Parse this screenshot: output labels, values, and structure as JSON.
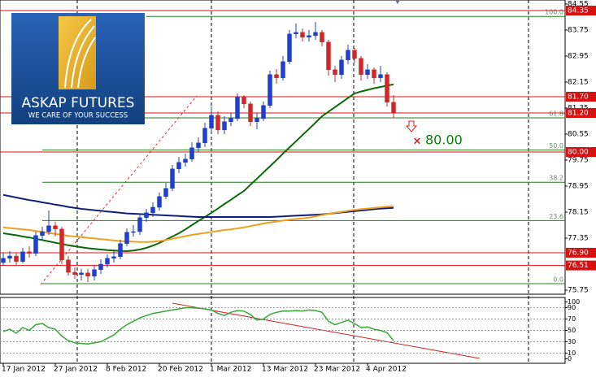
{
  "logo": {
    "title": "ASKAP FUTURES",
    "slogan": "WE CARE OF YOUR SUCCESS"
  },
  "chart_data": {
    "type": "candlestick",
    "categories": [
      "17 Jan 2012",
      null,
      null,
      null,
      null,
      null,
      null,
      null,
      "27 Jan 2012",
      null,
      null,
      null,
      null,
      null,
      null,
      null,
      "8 Feb 2012",
      null,
      null,
      null,
      null,
      null,
      null,
      null,
      "20 Feb 2012",
      null,
      null,
      null,
      null,
      null,
      null,
      null,
      "1 Mar 2012",
      null,
      null,
      null,
      null,
      null,
      null,
      null,
      "13 Mar 2012",
      null,
      null,
      null,
      null,
      null,
      null,
      null,
      "23 Mar 2012",
      null,
      null,
      null,
      null,
      null,
      null,
      null,
      "4 Apr 2012",
      null,
      null,
      null,
      null
    ],
    "open": [
      76.6,
      76.73,
      76.8,
      76.63,
      76.93,
      76.88,
      77.43,
      77.55,
      77.73,
      77.63,
      76.68,
      76.3,
      76.23,
      76.28,
      76.18,
      76.38,
      76.55,
      76.73,
      76.78,
      77.18,
      77.53,
      77.55,
      77.98,
      78.13,
      78.3,
      78.63,
      78.88,
      79.48,
      79.68,
      79.78,
      80.13,
      80.28,
      80.73,
      81.13,
      80.68,
      80.93,
      81.03,
      81.68,
      81.48,
      80.93,
      81.03,
      81.43,
      82.38,
      82.28,
      82.78,
      83.63,
      83.68,
      83.53,
      83.58,
      83.68,
      83.38,
      82.53,
      82.38,
      82.83,
      83.13,
      82.88,
      82.38,
      82.53,
      82.28,
      82.38,
      81.53
    ],
    "high": [
      76.9,
      76.95,
      76.88,
      77.05,
      77.1,
      77.55,
      77.7,
      78.2,
      77.85,
      77.7,
      76.8,
      76.45,
      76.4,
      76.4,
      76.5,
      76.7,
      76.85,
      76.95,
      77.3,
      77.65,
      77.75,
      78.1,
      78.25,
      78.45,
      78.75,
      79.05,
      79.6,
      79.85,
      79.95,
      80.3,
      80.45,
      80.9,
      81.4,
      81.25,
      81.1,
      81.2,
      81.8,
      81.75,
      81.55,
      81.2,
      81.55,
      82.5,
      82.55,
      82.95,
      83.75,
      83.95,
      83.8,
      83.75,
      84.0,
      83.75,
      83.45,
      82.65,
      82.95,
      83.3,
      83.2,
      82.95,
      82.7,
      82.6,
      82.65,
      82.45,
      81.75
    ],
    "low": [
      76.5,
      76.6,
      76.5,
      76.58,
      76.75,
      76.8,
      77.3,
      77.45,
      77.4,
      76.55,
      76.2,
      76.1,
      76.05,
      76.0,
      76.05,
      76.25,
      76.45,
      76.6,
      76.7,
      77.1,
      77.4,
      77.45,
      77.85,
      78.0,
      78.2,
      78.55,
      78.8,
      79.35,
      79.55,
      79.7,
      80.0,
      80.15,
      80.6,
      80.55,
      80.55,
      80.8,
      80.95,
      81.35,
      80.8,
      80.7,
      80.95,
      81.35,
      82.1,
      82.2,
      82.7,
      83.5,
      83.4,
      83.4,
      83.45,
      83.25,
      82.35,
      82.15,
      82.25,
      82.7,
      82.75,
      82.2,
      82.25,
      82.1,
      82.15,
      81.4,
      81.05
    ],
    "close": [
      76.73,
      76.8,
      76.63,
      76.93,
      76.88,
      77.43,
      77.55,
      77.73,
      77.63,
      76.68,
      76.3,
      76.23,
      76.28,
      76.18,
      76.38,
      76.55,
      76.73,
      76.78,
      77.18,
      77.53,
      77.55,
      77.98,
      78.13,
      78.3,
      78.63,
      78.88,
      79.48,
      79.68,
      79.78,
      80.13,
      80.28,
      80.73,
      81.13,
      80.68,
      80.93,
      81.03,
      81.68,
      81.48,
      80.93,
      81.03,
      81.43,
      82.38,
      82.28,
      82.78,
      83.63,
      83.68,
      83.53,
      83.58,
      83.68,
      83.38,
      82.53,
      82.38,
      82.83,
      83.13,
      82.88,
      82.38,
      82.53,
      82.28,
      82.38,
      81.53,
      81.2
    ],
    "up_color": "#1f3fd0",
    "down_color": "#d02828",
    "ylim": [
      75.625,
      84.675
    ],
    "yticks": [
      84.55,
      83.75,
      82.95,
      82.15,
      81.35,
      80.55,
      79.75,
      78.95,
      78.15,
      77.35,
      75.75
    ],
    "series": [
      {
        "color": "#0a6a0a",
        "values": [
          77.5,
          77.47,
          77.44,
          77.4,
          77.37,
          77.33,
          77.29,
          77.25,
          77.21,
          77.17,
          77.13,
          77.1,
          77.07,
          77.04,
          77.02,
          77.0,
          76.98,
          76.97,
          76.96,
          76.95,
          76.97,
          77.0,
          77.05,
          77.12,
          77.2,
          77.3,
          77.4,
          77.5,
          77.62,
          77.75,
          77.88,
          78.0,
          78.13,
          78.26,
          78.4,
          78.53,
          78.67,
          78.8,
          78.99,
          79.18,
          79.37,
          79.56,
          79.75,
          79.95,
          80.14,
          80.33,
          80.52,
          80.71,
          80.9,
          81.1,
          81.24,
          81.38,
          81.52,
          81.66,
          81.8,
          81.86,
          81.91,
          81.96,
          82.0,
          82.04,
          82.08
        ]
      },
      {
        "color": "#10207a",
        "values": [
          78.68,
          78.64,
          78.6,
          78.56,
          78.52,
          78.49,
          78.45,
          78.42,
          78.38,
          78.35,
          78.31,
          78.28,
          78.25,
          78.23,
          78.21,
          78.19,
          78.17,
          78.15,
          78.13,
          78.11,
          78.1,
          78.09,
          78.08,
          78.07,
          78.06,
          78.05,
          78.04,
          78.03,
          78.02,
          78.01,
          78.0,
          78.0,
          78.0,
          78.0,
          78.0,
          78.0,
          78.0,
          78.0,
          78.0,
          78.0,
          78.0,
          78.0,
          78.01,
          78.02,
          78.03,
          78.04,
          78.05,
          78.06,
          78.07,
          78.08,
          78.1,
          78.12,
          78.14,
          78.16,
          78.18,
          78.2,
          78.22,
          78.24,
          78.26,
          78.27,
          78.28
        ]
      },
      {
        "color": "#f0a020",
        "values": [
          77.68,
          77.66,
          77.64,
          77.62,
          77.6,
          77.57,
          77.54,
          77.51,
          77.48,
          77.45,
          77.42,
          77.4,
          77.38,
          77.36,
          77.34,
          77.32,
          77.3,
          77.28,
          77.26,
          77.25,
          77.24,
          77.23,
          77.23,
          77.24,
          77.26,
          77.29,
          77.33,
          77.37,
          77.41,
          77.45,
          77.48,
          77.51,
          77.54,
          77.57,
          77.6,
          77.62,
          77.65,
          77.68,
          77.72,
          77.76,
          77.8,
          77.83,
          77.86,
          77.89,
          77.92,
          77.94,
          77.96,
          77.98,
          78.02,
          78.06,
          78.1,
          78.13,
          78.16,
          78.19,
          78.22,
          78.24,
          78.26,
          78.28,
          78.3,
          78.32,
          78.33
        ]
      }
    ],
    "levels": [
      84.35,
      {
        "value": 81.7,
        "label": "81.70"
      },
      {
        "value": 81.2,
        "label": "81.20"
      },
      {
        "value": 80,
        "label": "80.00"
      },
      {
        "value": 76.9,
        "label": "76.90"
      },
      76.51
    ],
    "level_color": "#d81010",
    "fib_levels": [
      {
        "name": "100.0",
        "price": 84.17
      },
      {
        "name": "61.8",
        "price": 81.05
      },
      {
        "name": "50.0",
        "price": 80.06
      },
      {
        "name": "38.2",
        "price": 79.07
      },
      {
        "name": "23.6",
        "price": 77.89
      },
      {
        "name": "0.0",
        "price": 75.95
      }
    ],
    "fib_color": "#208020",
    "annotation": {
      "text": {
        "value": 80,
        "label": "80.00"
      }
    },
    "oscillator": {
      "color": "#38a838",
      "ylim": [
        -8,
        108
      ],
      "yticks": [
        100,
        90,
        70,
        50,
        30,
        10,
        0
      ],
      "values": [
        48,
        52,
        45,
        55,
        50,
        60,
        62,
        55,
        52,
        40,
        32,
        28,
        27,
        26,
        28,
        30,
        36,
        42,
        52,
        60,
        66,
        72,
        76,
        80,
        82,
        84,
        86,
        88,
        90,
        90,
        89,
        88,
        86,
        80,
        76,
        82,
        85,
        84,
        78,
        68,
        70,
        78,
        82,
        84,
        84,
        85,
        84,
        86,
        85,
        82,
        66,
        60,
        64,
        68,
        62,
        55,
        56,
        52,
        50,
        46,
        32
      ]
    }
  }
}
